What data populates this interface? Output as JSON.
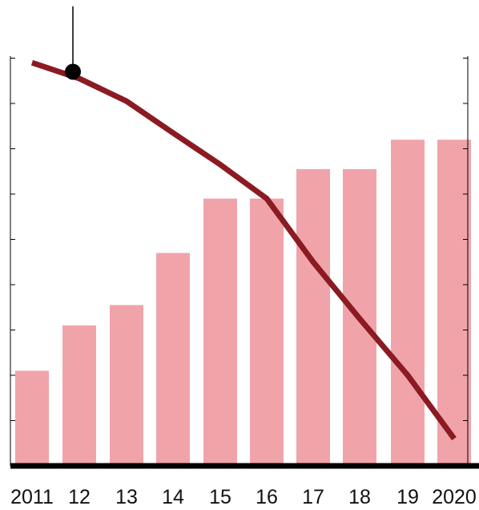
{
  "chart_data": {
    "type": "bar",
    "categories": [
      "2011",
      "12",
      "13",
      "14",
      "15",
      "16",
      "17",
      "18",
      "19",
      "2020"
    ],
    "values": [
      2.1,
      3.1,
      3.55,
      4.7,
      5.9,
      5.9,
      6.55,
      6.55,
      7.2,
      7.2
    ],
    "line_series": {
      "values": [
        8.9,
        8.55,
        8.05,
        7.35,
        6.65,
        5.9,
        4.5,
        3.25,
        2.0,
        0.6
      ]
    },
    "marker": {
      "category": "12",
      "value": 8.7
    },
    "ylim": [
      0,
      10
    ],
    "y_ticks": [
      0,
      1,
      2,
      3,
      4,
      5,
      6,
      7,
      8,
      9
    ],
    "grid": false,
    "title": "",
    "xlabel": "",
    "ylabel": "",
    "colors": {
      "bar": "#f0a4aa",
      "line": "#8b1a22",
      "axis": "#000000",
      "marker": "#000000"
    }
  }
}
